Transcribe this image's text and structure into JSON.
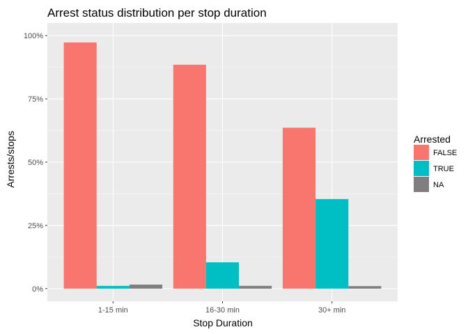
{
  "chart_data": {
    "type": "bar",
    "title": "Arrest status distribution per stop duration",
    "xlabel": "Stop Duration",
    "ylabel": "Arrests/stops",
    "categories": [
      "1-15 min",
      "16-30 min",
      "30+ min"
    ],
    "series": [
      {
        "name": "FALSE",
        "color": "#F8766D",
        "values": [
          0.973,
          0.885,
          0.636
        ]
      },
      {
        "name": "TRUE",
        "color": "#00BFC4",
        "values": [
          0.011,
          0.104,
          0.354
        ]
      },
      {
        "name": "NA",
        "color": "#7F7F7F",
        "values": [
          0.016,
          0.011,
          0.01
        ]
      }
    ],
    "ylim": [
      -0.05,
      1.05
    ],
    "yticks": [
      0,
      0.25,
      0.5,
      0.75,
      1.0
    ],
    "ytick_labels": [
      "0%",
      "25%",
      "50%",
      "75%",
      "100%"
    ],
    "legend": {
      "title": "Arrested",
      "position": "right"
    },
    "grid": true,
    "panel_background": "#EBEBEB"
  }
}
